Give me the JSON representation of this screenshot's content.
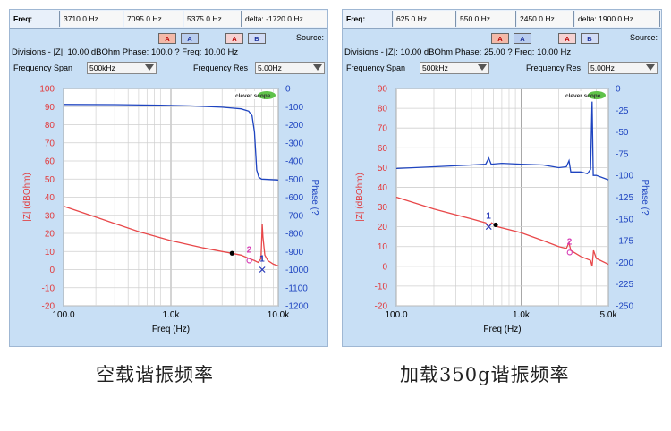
{
  "panels": [
    {
      "readout": {
        "label": "Freq:",
        "cells": [
          "3710.0 Hz",
          "7095.0 Hz",
          "5375.0 Hz",
          "delta: -1720.0 Hz"
        ]
      },
      "buttons": [
        "A",
        "A",
        "A",
        "B"
      ],
      "source_label": "Source:",
      "divisions_text": "Divisions -  |Z|: 10.00 dBOhm   Phase: 100.0 ?   Freq: 10.00 Hz",
      "span_label": "Frequency Span",
      "span_value": "500kHz",
      "res_label": "Frequency Res",
      "res_value": "5.00Hz",
      "caption": "空载谐振频率"
    },
    {
      "readout": {
        "label": "Freq:",
        "cells": [
          "625.0 Hz",
          "550.0 Hz",
          "2450.0 Hz",
          "delta: 1900.0 Hz"
        ]
      },
      "buttons": [
        "A",
        "A",
        "A",
        "B"
      ],
      "source_label": "Source:",
      "divisions_text": "Divisions -  |Z|: 10.00 dBOhm   Phase: 25.00 ?   Freq: 10.00 Hz",
      "span_label": "Frequency Span",
      "span_value": "500kHz",
      "res_label": "Frequency Res",
      "res_value": "5.00Hz",
      "caption": "加载350g谐振频率"
    }
  ],
  "chart_data": [
    {
      "type": "line",
      "xscale": "log",
      "xlim": [
        100,
        10000
      ],
      "xticks": [
        {
          "v": 100,
          "t": "100.0"
        },
        {
          "v": 1000,
          "t": "1.0k"
        },
        {
          "v": 10000,
          "t": "10.0k"
        }
      ],
      "xlabel": "Freq (Hz)",
      "ylabel_left": "|Z| (dBOhm)",
      "ylim_left": [
        -20,
        100
      ],
      "yticks_left": [
        -20,
        -10,
        0,
        10,
        20,
        30,
        40,
        50,
        60,
        70,
        80,
        90,
        100
      ],
      "ylabel_right": "Phase (?",
      "ylim_right": [
        -1200,
        0
      ],
      "yticks_right": [
        0,
        -100,
        -200,
        -300,
        -400,
        -500,
        -600,
        -700,
        -800,
        -900,
        -1000,
        -1100,
        -1200
      ],
      "logo_text": "clever scope",
      "series": [
        {
          "axis": "left",
          "color": "#e8484a",
          "points": [
            [
              100,
              35
            ],
            [
              200,
              29
            ],
            [
              500,
              21
            ],
            [
              1000,
              16
            ],
            [
              2000,
              12
            ],
            [
              3000,
              10
            ],
            [
              3710,
              9
            ],
            [
              4500,
              8
            ],
            [
              5400,
              6
            ],
            [
              6000,
              5
            ],
            [
              6500,
              4
            ],
            [
              6900,
              6
            ],
            [
              7000,
              15
            ],
            [
              7090,
              25
            ],
            [
              7200,
              18
            ],
            [
              7500,
              8
            ],
            [
              8000,
              5
            ],
            [
              9000,
              3
            ],
            [
              10000,
              2
            ]
          ]
        },
        {
          "axis": "right",
          "color": "#1e44c0",
          "points": [
            [
              100,
              -88
            ],
            [
              300,
              -89
            ],
            [
              800,
              -92
            ],
            [
              1500,
              -96
            ],
            [
              3000,
              -103
            ],
            [
              4500,
              -112
            ],
            [
              5300,
              -125
            ],
            [
              5700,
              -150
            ],
            [
              6000,
              -240
            ],
            [
              6300,
              -450
            ],
            [
              6600,
              -490
            ],
            [
              7000,
              -500
            ],
            [
              10000,
              -505
            ]
          ]
        }
      ],
      "markers": [
        {
          "label": "",
          "axis": "left",
          "x": 3710,
          "y": 9,
          "color": "#000000",
          "shape": "dot"
        },
        {
          "label": "2",
          "axis": "left",
          "x": 5375,
          "y": 5,
          "color": "#d63ab4",
          "shape": "o"
        },
        {
          "label": "1",
          "axis": "left",
          "x": 7095,
          "y": 0,
          "color": "#2436b8",
          "shape": "x"
        }
      ]
    },
    {
      "type": "line",
      "xscale": "log",
      "xlim": [
        100,
        5000
      ],
      "xticks": [
        {
          "v": 100,
          "t": "100.0"
        },
        {
          "v": 1000,
          "t": "1.0k"
        },
        {
          "v": 5000,
          "t": "5.0k"
        }
      ],
      "xlabel": "Freq (Hz)",
      "ylabel_left": "|Z| (dBOhm)",
      "ylim_left": [
        -20,
        90
      ],
      "yticks_left": [
        -20,
        -10,
        0,
        10,
        20,
        30,
        40,
        50,
        60,
        70,
        80,
        90
      ],
      "ylabel_right": "Phase (?",
      "ylim_right": [
        -250,
        0
      ],
      "yticks_right": [
        0,
        -25,
        -50,
        -75,
        -100,
        -125,
        -150,
        -175,
        -200,
        -225,
        -250
      ],
      "logo_text": "clever scope",
      "series": [
        {
          "axis": "left",
          "color": "#e8484a",
          "points": [
            [
              100,
              35
            ],
            [
              200,
              29
            ],
            [
              400,
              24
            ],
            [
              520,
              22
            ],
            [
              550,
              20
            ],
            [
              580,
              22
            ],
            [
              650,
              20
            ],
            [
              1000,
              17
            ],
            [
              1500,
              13
            ],
            [
              2000,
              10
            ],
            [
              2300,
              9
            ],
            [
              2420,
              12
            ],
            [
              2500,
              8
            ],
            [
              3000,
              5
            ],
            [
              3600,
              3
            ],
            [
              3700,
              0
            ],
            [
              3800,
              8
            ],
            [
              4000,
              4
            ],
            [
              5000,
              1
            ]
          ]
        },
        {
          "axis": "right",
          "color": "#1e44c0",
          "points": [
            [
              100,
              -92
            ],
            [
              200,
              -90
            ],
            [
              400,
              -88
            ],
            [
              520,
              -87
            ],
            [
              550,
              -80
            ],
            [
              575,
              -87
            ],
            [
              700,
              -86
            ],
            [
              1000,
              -87
            ],
            [
              1500,
              -88
            ],
            [
              2000,
              -91
            ],
            [
              2300,
              -90
            ],
            [
              2420,
              -83
            ],
            [
              2500,
              -96
            ],
            [
              3000,
              -96
            ],
            [
              3400,
              -98
            ],
            [
              3600,
              -93
            ],
            [
              3700,
              -15
            ],
            [
              3780,
              -100
            ],
            [
              4000,
              -100
            ],
            [
              5000,
              -105
            ]
          ]
        }
      ],
      "markers": [
        {
          "label": "1",
          "axis": "left",
          "x": 550,
          "y": 20,
          "color": "#2436b8",
          "shape": "x"
        },
        {
          "label": "",
          "axis": "left",
          "x": 625,
          "y": 21,
          "color": "#000000",
          "shape": "dot"
        },
        {
          "label": "2",
          "axis": "left",
          "x": 2450,
          "y": 7,
          "color": "#d63ab4",
          "shape": "o"
        }
      ]
    }
  ]
}
